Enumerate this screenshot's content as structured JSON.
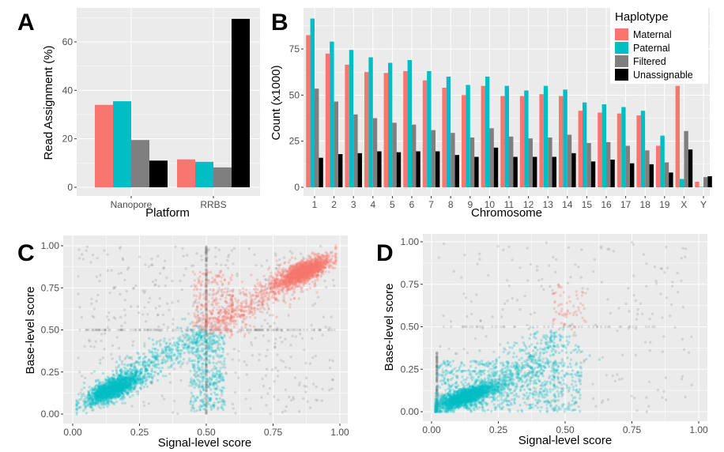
{
  "colors": {
    "Maternal": "#F8766D",
    "Paternal": "#00BFC4",
    "Filtered": "#7F7F7F",
    "Unassignable": "#000000",
    "panel_bg": "#EBEBEB",
    "grid": "#FFFFFF"
  },
  "chart_data": [
    {
      "panel": "A",
      "type": "bar",
      "categories": [
        "Nanopore",
        "RRBS"
      ],
      "series": [
        {
          "name": "Maternal",
          "values": [
            34,
            11.5
          ]
        },
        {
          "name": "Paternal",
          "values": [
            35.5,
            10.5
          ]
        },
        {
          "name": "Filtered",
          "values": [
            19.5,
            8.2
          ]
        },
        {
          "name": "Unassignable",
          "values": [
            11,
            69.5
          ]
        }
      ],
      "xlabel": "Platform",
      "ylabel": "Read Assignment (%)",
      "yticks": [
        0,
        20,
        40,
        60
      ],
      "ylim": [
        0,
        73
      ],
      "grid": true
    },
    {
      "panel": "B",
      "type": "bar",
      "categories": [
        "1",
        "2",
        "3",
        "4",
        "5",
        "6",
        "7",
        "8",
        "9",
        "10",
        "11",
        "12",
        "13",
        "14",
        "15",
        "16",
        "17",
        "18",
        "19",
        "X",
        "Y"
      ],
      "series": [
        {
          "name": "Maternal",
          "values": [
            82.5,
            72.5,
            66.5,
            62.5,
            62,
            63,
            58,
            54,
            50,
            55,
            49.5,
            49.5,
            50.5,
            49.5,
            41.5,
            40.5,
            40,
            39,
            22.5,
            55,
            3
          ]
        },
        {
          "name": "Paternal",
          "values": [
            91.5,
            79,
            74.5,
            70.5,
            67.5,
            69,
            63,
            60,
            55.5,
            60,
            55,
            52.5,
            55,
            53,
            46,
            45,
            43.5,
            41.5,
            28,
            4.5,
            0.2
          ]
        },
        {
          "name": "Filtered",
          "values": [
            53.5,
            46.5,
            39.5,
            37.5,
            35,
            34,
            31,
            29.5,
            27,
            32,
            27.5,
            26.5,
            27,
            28.5,
            24,
            24.5,
            22.5,
            20,
            13.5,
            30.5,
            5.5
          ]
        },
        {
          "name": "Unassignable",
          "values": [
            16,
            18,
            18.5,
            19.5,
            19,
            19.5,
            19.5,
            17.5,
            16.5,
            21.5,
            16.5,
            16.5,
            16.5,
            18.5,
            14,
            15,
            13,
            12.5,
            8,
            20.5,
            6
          ]
        }
      ],
      "xlabel": "Chromosome",
      "ylabel": "Count (x1000)",
      "yticks": [
        0,
        25,
        50,
        75
      ],
      "ylim": [
        0,
        96
      ],
      "grid": true,
      "legend": {
        "title": "Haplotype",
        "entries": [
          "Maternal",
          "Paternal",
          "Filtered",
          "Unassignable"
        ],
        "position": "top-right"
      }
    },
    {
      "panel": "C",
      "type": "scatter",
      "xlabel": "Signal-level score",
      "ylabel": "Base-level score",
      "xticks": [
        "0.00",
        "0.25",
        "0.50",
        "0.75",
        "1.00"
      ],
      "yticks": [
        "0.00",
        "0.25",
        "0.50",
        "0.75",
        "1.00"
      ],
      "xlim": [
        0,
        1
      ],
      "ylim": [
        0,
        1
      ],
      "grid": true,
      "clusters": [
        {
          "series": "Paternal",
          "kind": "gaussian",
          "center": [
            0.15,
            0.15
          ],
          "sd": [
            0.05,
            0.045
          ],
          "n": 1400
        },
        {
          "series": "Paternal",
          "kind": "band",
          "from": [
            0.1,
            0.1
          ],
          "to": [
            0.5,
            0.5
          ],
          "width": 0.08,
          "n": 600
        },
        {
          "series": "Paternal",
          "kind": "box",
          "x": [
            0.44,
            0.57
          ],
          "y": [
            0.02,
            0.48
          ],
          "n": 350
        },
        {
          "series": "Maternal",
          "kind": "gaussian",
          "center": [
            0.87,
            0.85
          ],
          "sd": [
            0.05,
            0.045
          ],
          "n": 1400
        },
        {
          "series": "Maternal",
          "kind": "band",
          "from": [
            0.5,
            0.5
          ],
          "to": [
            0.88,
            0.86
          ],
          "width": 0.08,
          "n": 600
        },
        {
          "series": "Maternal",
          "kind": "box",
          "x": [
            0.45,
            0.6
          ],
          "y": [
            0.52,
            0.85
          ],
          "n": 200
        },
        {
          "series": "Filtered",
          "kind": "vline",
          "x": 0.5,
          "y": [
            0,
            1
          ],
          "n": 250
        },
        {
          "series": "Filtered",
          "kind": "hline",
          "y": 0.5,
          "x": [
            0.02,
            0.98
          ],
          "n": 150
        },
        {
          "series": "Filtered",
          "kind": "box",
          "x": [
            0.02,
            0.98
          ],
          "y": [
            0,
            1
          ],
          "n": 500
        }
      ]
    },
    {
      "panel": "D",
      "type": "scatter",
      "xlabel": "Signal-level score",
      "ylabel": "Base-level score",
      "xticks": [
        "0.00",
        "0.25",
        "0.50",
        "0.75",
        "1.00"
      ],
      "yticks": [
        "0.00",
        "0.25",
        "0.50",
        "0.75",
        "1.00"
      ],
      "xlim": [
        0,
        1
      ],
      "ylim": [
        0,
        1
      ],
      "grid": true,
      "clusters": [
        {
          "series": "Paternal",
          "kind": "gaussian",
          "center": [
            0.13,
            0.09
          ],
          "sd": [
            0.06,
            0.04
          ],
          "n": 1600
        },
        {
          "series": "Paternal",
          "kind": "box",
          "x": [
            0.02,
            0.56
          ],
          "y": [
            0,
            0.3
          ],
          "n": 700
        },
        {
          "series": "Paternal",
          "kind": "band",
          "from": [
            0.2,
            0.1
          ],
          "to": [
            0.5,
            0.45
          ],
          "width": 0.12,
          "n": 400
        },
        {
          "series": "Maternal",
          "kind": "box",
          "x": [
            0.45,
            0.58
          ],
          "y": [
            0.48,
            0.75
          ],
          "n": 60
        },
        {
          "series": "Filtered",
          "kind": "vline",
          "x": 0.02,
          "y": [
            0,
            0.35
          ],
          "n": 150
        },
        {
          "series": "Filtered",
          "kind": "hline",
          "y": 0.5,
          "x": [
            0.02,
            0.85
          ],
          "n": 50
        },
        {
          "series": "Filtered",
          "kind": "box",
          "x": [
            0.02,
            0.98
          ],
          "y": [
            0,
            1
          ],
          "n": 250
        }
      ]
    }
  ]
}
